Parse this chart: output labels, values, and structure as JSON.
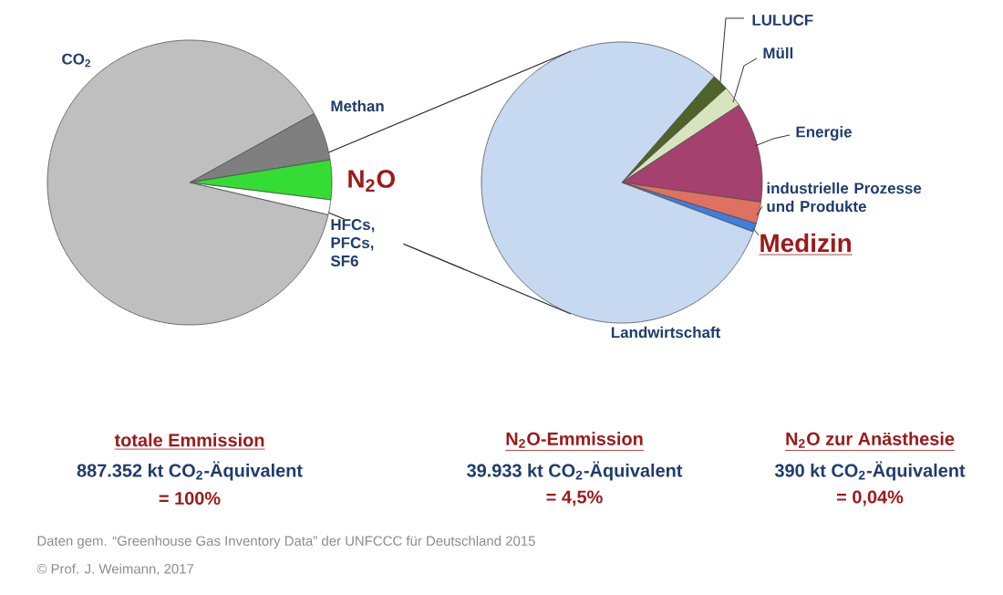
{
  "chart_data": [
    {
      "type": "pie",
      "categories": [
        "Methan",
        "N$_{2}$O",
        "HFCs, PFCs, SF6",
        "CO$_{2}$"
      ],
      "values": [
        5.5,
        4.5,
        1.7,
        88.3
      ],
      "colors": [
        "#7f7f7f",
        "#33dd33",
        "#ffffff",
        "#bfbfbf"
      ],
      "annotations": [
        "totale Emmission",
        "887.352 kt CO$_{2}$-Äquivalent",
        "= 100%",
        "Daten gem. “Greenhouse Gas Inventory Data” der UNFCCC für Deutschland 2015",
        "© Prof. J. Weimann, 2017"
      ]
    },
    {
      "type": "pie",
      "categories": [
        "LULUCF",
        "Müll",
        "Energie",
        "industrielle Prozesse und Produkte",
        "Medizin",
        "Landwirtschaft"
      ],
      "values": [
        1.9,
        2.4,
        11.5,
        2.5,
        1.0,
        80.7
      ],
      "colors": [
        "#4f6228",
        "#d7e4bd",
        "#a5416f",
        "#e07060",
        "#3d7fe0",
        "#c6d9f1"
      ],
      "annotations": [
        "N$_{2}$O-Emmission",
        "39.933 kt CO$_{2}$-Äquivalent",
        "= 4,5%",
        "N$_{2}$O zur Anästhesie",
        "390 kt CO$_{2}$-Äquivalent",
        "= 0,04%"
      ]
    }
  ]
}
